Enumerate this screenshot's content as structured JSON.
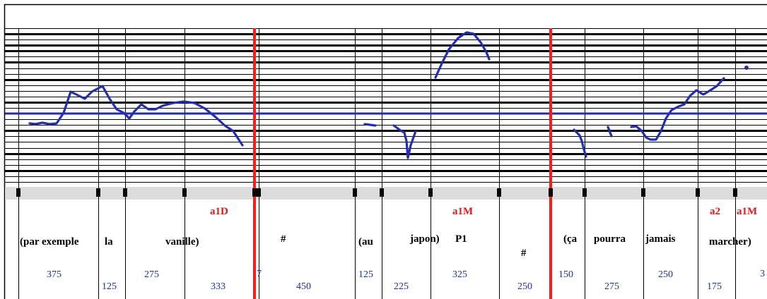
{
  "staff": {
    "line_weights": [
      "thin",
      "thick",
      "thin",
      "thick",
      "thick",
      "thin",
      "thick",
      "thin",
      "thin",
      "thick",
      "thin",
      "thin",
      "thin",
      "thick",
      "thin",
      "thin",
      "thin",
      "thin",
      "thick",
      "thin",
      "thin",
      "thin",
      "thick",
      "thin",
      "thin",
      "thick",
      "thin",
      "thin"
    ],
    "contour_color": "#1f2fb0",
    "boundary_color": "#ff1a1a",
    "reference_color": "#1f2fb0"
  },
  "segments": [
    {
      "word": "(par exemple",
      "duration": "375"
    },
    {
      "word": "la",
      "duration": "125"
    },
    {
      "word": "vanille)",
      "duration": "275"
    },
    {
      "word": "",
      "duration": "333"
    },
    {
      "word": "#",
      "duration": "450"
    },
    {
      "word": "(au",
      "duration": "125"
    },
    {
      "word": "japon)",
      "duration": "225"
    },
    {
      "word": "P1",
      "duration": "325"
    },
    {
      "word": "#",
      "duration": "250"
    },
    {
      "word": "(ça",
      "duration": "150"
    },
    {
      "word": "pourra",
      "duration": "275"
    },
    {
      "word": "jamais",
      "duration": "250"
    },
    {
      "word": "marcher)",
      "duration": "175"
    }
  ],
  "overflow_numbers": [
    "7",
    "3"
  ],
  "tones": [
    {
      "label": "a1D"
    },
    {
      "label": "a1M"
    },
    {
      "label": "a2"
    },
    {
      "label": "a1M"
    }
  ]
}
